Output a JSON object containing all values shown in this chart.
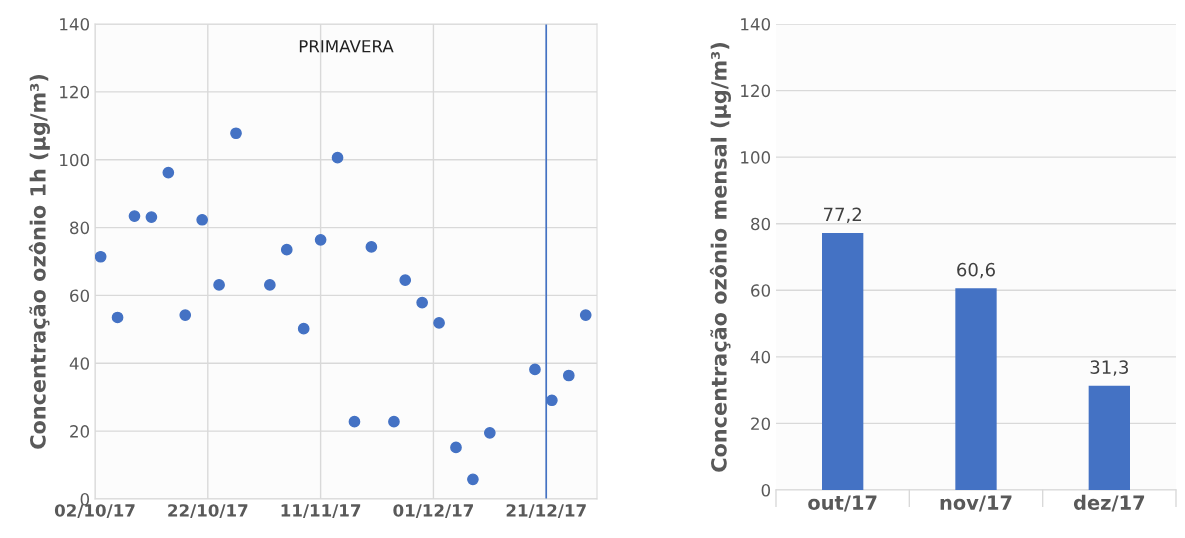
{
  "chart_data": [
    {
      "type": "scatter",
      "ylabel": "Concentração ozônio 1h (µg/m³)",
      "annotations": [
        "PRIMAVERA"
      ],
      "x": [
        "2017-10-03",
        "2017-10-06",
        "2017-10-09",
        "2017-10-12",
        "2017-10-15",
        "2017-10-18",
        "2017-10-21",
        "2017-10-24",
        "2017-10-27",
        "2017-11-02",
        "2017-11-05",
        "2017-11-08",
        "2017-11-11",
        "2017-11-14",
        "2017-11-17",
        "2017-11-20",
        "2017-11-24",
        "2017-11-26",
        "2017-11-29",
        "2017-12-02",
        "2017-12-05",
        "2017-12-08",
        "2017-12-11",
        "2017-12-19",
        "2017-12-22",
        "2017-12-25",
        "2017-12-28"
      ],
      "series": [
        {
          "color": "#4472c4",
          "values": [
            71.4,
            53.5,
            83.4,
            83.1,
            96.2,
            54.2,
            82.3,
            63.1,
            107.8,
            63.1,
            73.5,
            50.2,
            76.4,
            100.6,
            22.8,
            74.3,
            22.8,
            64.5,
            57.9,
            51.9,
            15.2,
            5.8,
            19.5,
            38.2,
            29.1,
            36.4,
            54.2
          ]
        }
      ],
      "marker": "circle",
      "grid": true,
      "xlim": [
        "2017-10-02",
        "2017-12-30"
      ],
      "xticks": [
        {
          "value": "2017-10-02",
          "label": "02/10/17"
        },
        {
          "value": "2017-10-22",
          "label": "22/10/17"
        },
        {
          "value": "2017-11-11",
          "label": "11/11/17"
        },
        {
          "value": "2017-12-01",
          "label": "01/12/17"
        },
        {
          "value": "2017-12-21",
          "label": "21/12/17"
        }
      ],
      "ylim": [
        0,
        140
      ],
      "yticks": [
        0,
        20,
        40,
        60,
        80,
        100,
        120,
        140
      ],
      "ref_lines": [
        {
          "axis": "x",
          "value": "2017-12-21",
          "color": "#4472c4"
        }
      ]
    },
    {
      "type": "bar",
      "ylabel": "Concentração ozônio mensal (µg/m³)",
      "categories": [
        "out/17",
        "nov/17",
        "dez/17"
      ],
      "values": [
        77.2,
        60.6,
        31.3
      ],
      "color": "#4472c4",
      "value_labels": [
        "77,2",
        "60,6",
        "31,3"
      ],
      "ylim": [
        0,
        140
      ],
      "yticks": [
        0,
        20,
        40,
        60,
        80,
        100,
        120,
        140
      ],
      "grid": "y"
    }
  ]
}
